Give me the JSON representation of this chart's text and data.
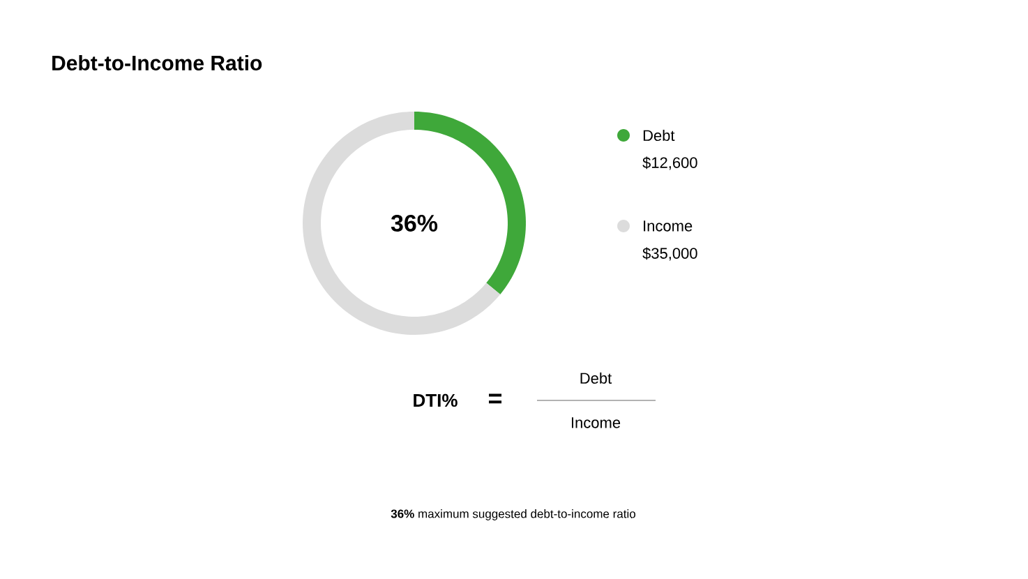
{
  "chart_data": {
    "type": "donut",
    "title": "Debt-to-Income Ratio",
    "categories": [
      "Debt",
      "Income"
    ],
    "values": [
      36,
      64
    ],
    "colors": [
      "#3fa83a",
      "#dcdcdc"
    ],
    "legend": "right",
    "annotations": [
      "36%",
      "DTI%",
      "=",
      "Debt",
      "Income",
      "**36%** maximum suggested debt-to-income ratio",
      "$12,600",
      "$35,000"
    ]
  }
}
